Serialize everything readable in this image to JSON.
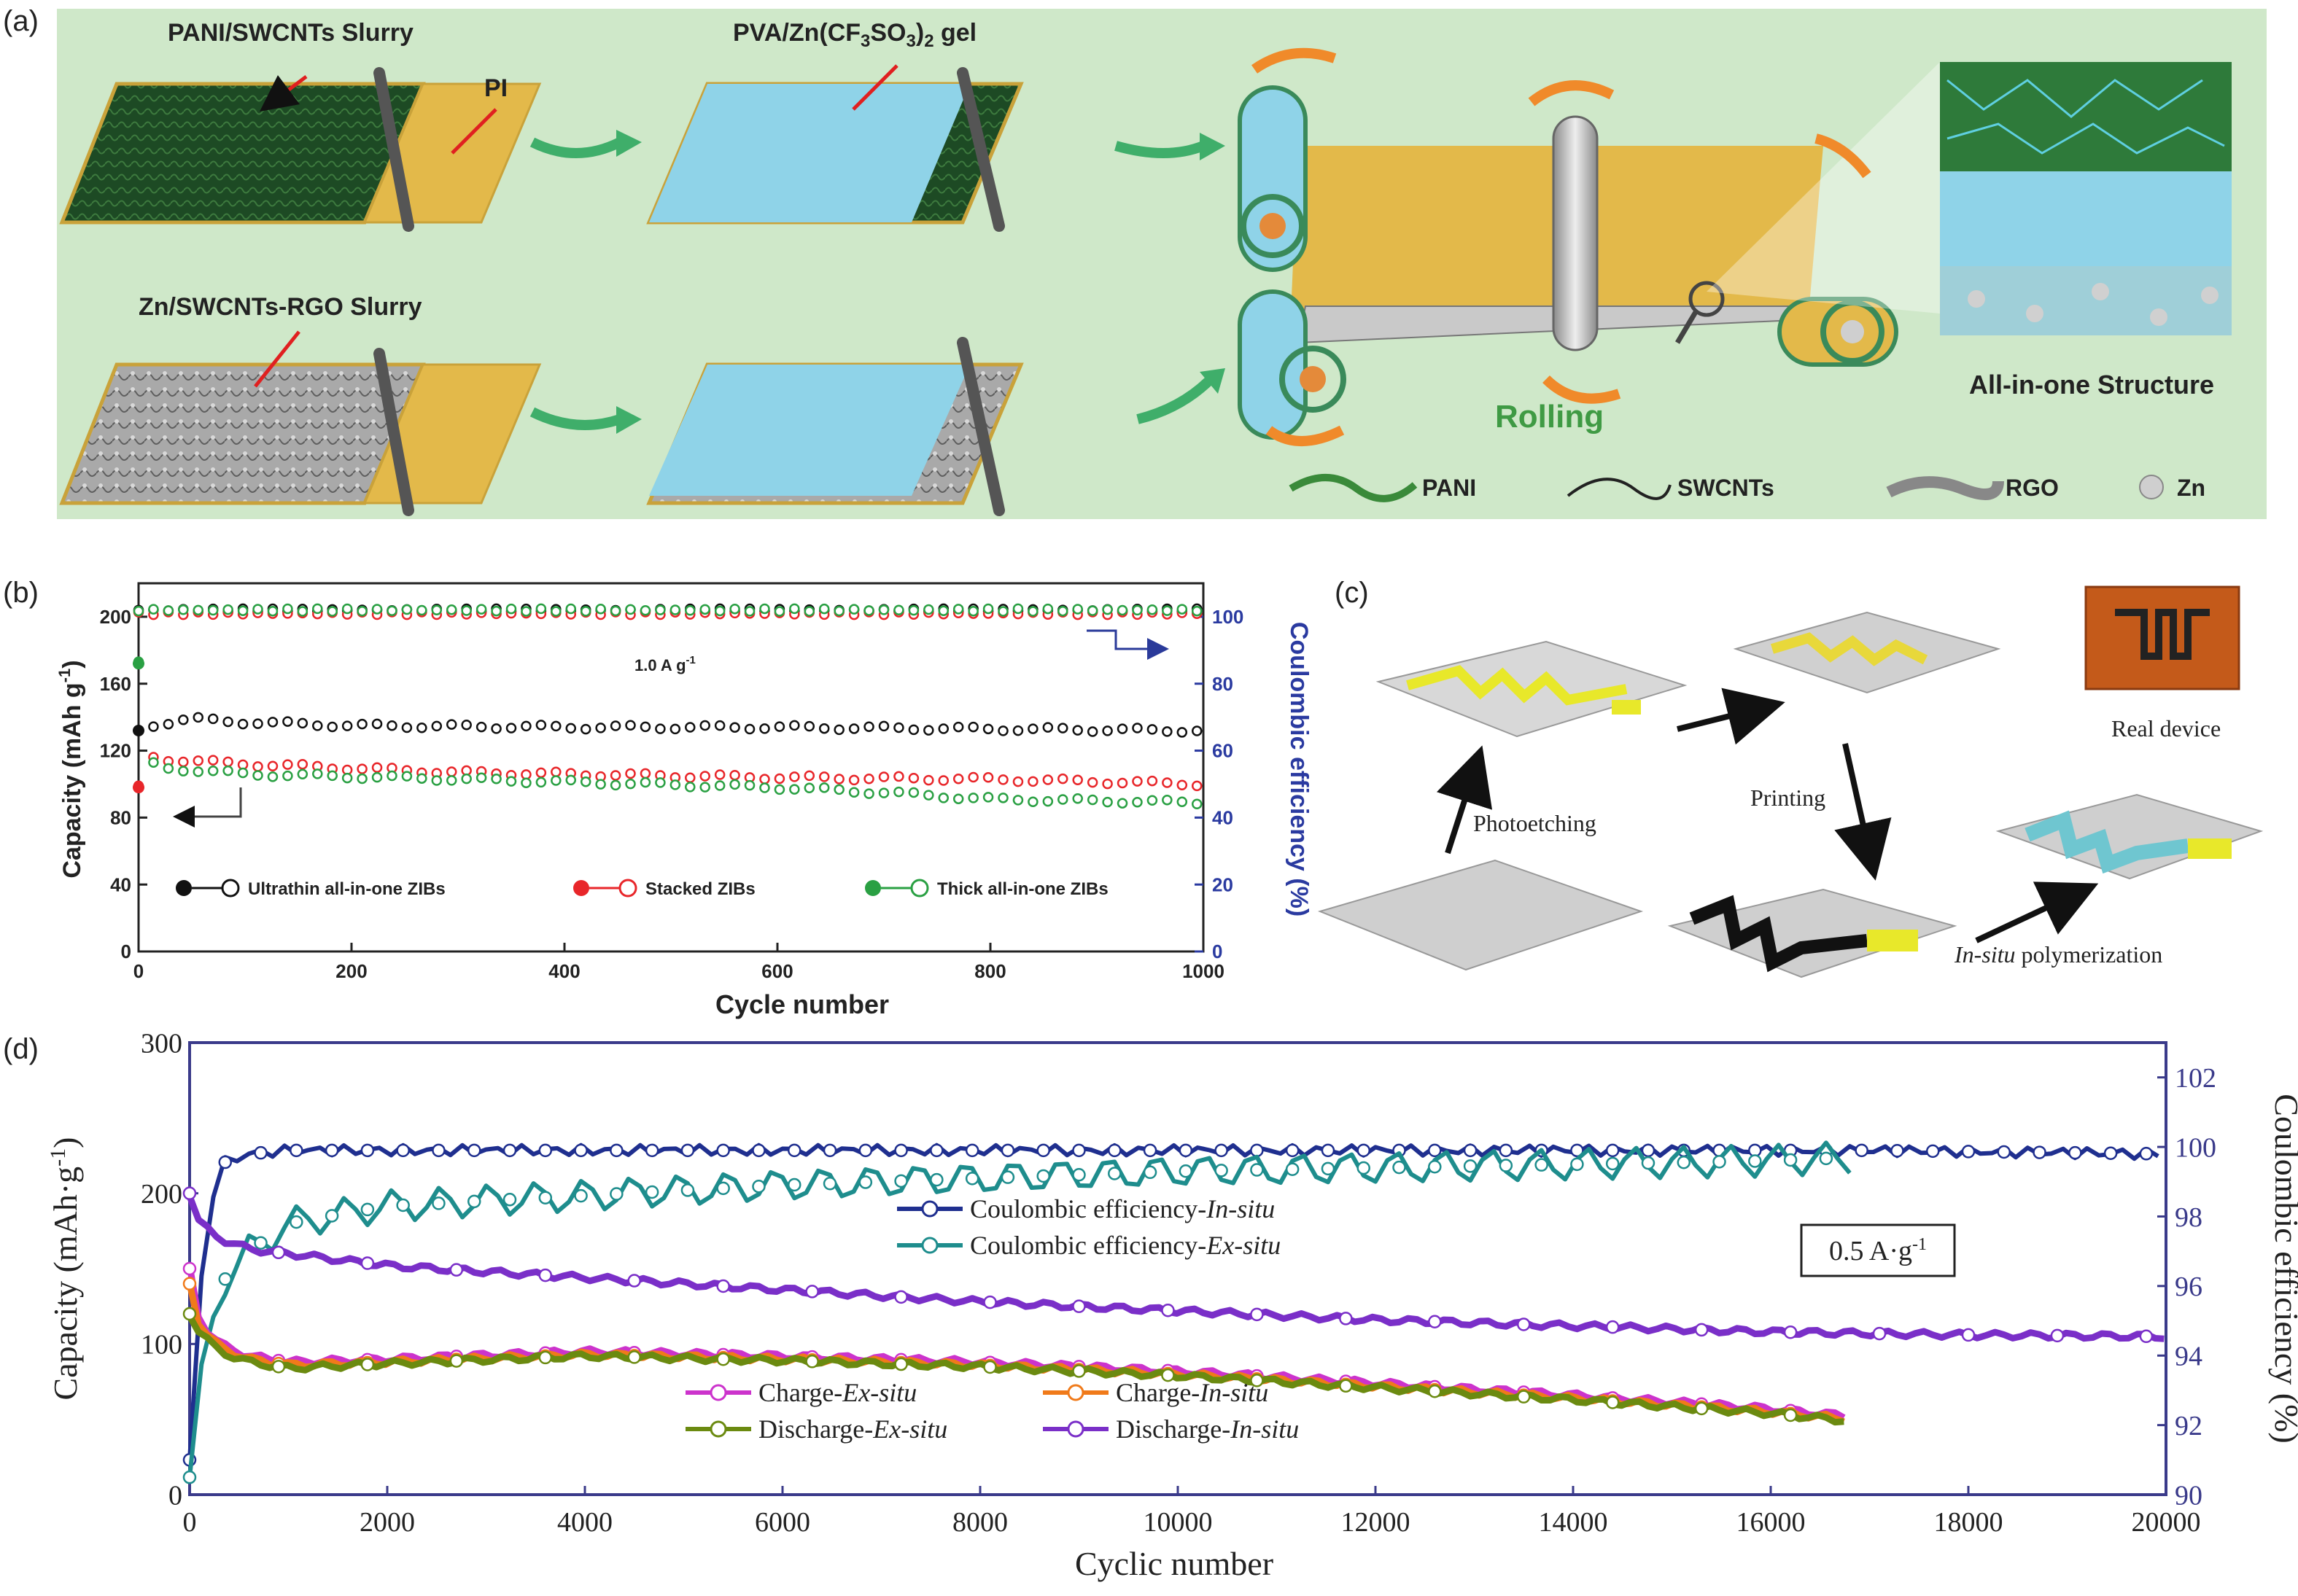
{
  "panel_a": {
    "label": "(a)",
    "pani_slurry": "PANI/SWCNTs Slurry",
    "pi": "PI",
    "pva_gel_html": "PVA/Zn(CF<tspan font-size='32' dy='8'>3</tspan><tspan dy='-8'>SO</tspan><tspan font-size='32' dy='8'>3</tspan><tspan dy='-8'>)</tspan><tspan font-size='32' dy='8'>2</tspan><tspan dy='-8'> gel</tspan>",
    "pva_gel": "PVA/Zn(CF3SO3)2 gel",
    "zn_slurry": "Zn/SWCNTs-RGO Slurry",
    "rolling": "Rolling",
    "all_in_one": "All-in-one Structure",
    "legend": [
      "PANI",
      "SWCNTs",
      "RGO",
      "Zn"
    ],
    "colors": {
      "bg": "#cfe8c9",
      "pani": "#1d4a24",
      "pi": "#e3b94a",
      "gel": "#8fd3e8",
      "arrow": "#3fae6a",
      "orange": "#f08a2a",
      "rolling": "#3f9a44"
    }
  },
  "panel_c": {
    "label": "(c)",
    "photoetching": "Photoetching",
    "printing": "Printing",
    "real_device": "Real device",
    "in_situ": "In-situ",
    "polymerization": " polymerization"
  },
  "chart_data": [
    {
      "panel": "(b)",
      "type": "scatter",
      "xlabel": "Cycle number",
      "ylabel": "Capacity (mAh g⁻¹)",
      "y2label": "Coulombic efficiency (%)",
      "xlim": [
        0,
        1000
      ],
      "ylim": [
        0,
        220
      ],
      "y2lim": [
        0,
        110
      ],
      "xticks": [
        0,
        200,
        400,
        600,
        800,
        1000
      ],
      "yticks": [
        0,
        40,
        80,
        120,
        160,
        200
      ],
      "y2ticks": [
        0,
        20,
        40,
        60,
        80,
        100
      ],
      "annotation": "1.0 A g⁻¹",
      "legend": "bottom",
      "series": [
        {
          "name": "Ultrathin all-in-one ZIBs",
          "color": "#111111",
          "capacity": {
            "x": [
              0,
              10,
              50,
              100,
              200,
              400,
              600,
              800,
              1000
            ],
            "y": [
              132,
              135,
              139,
              137,
              135,
              134,
              134,
              133,
              132
            ]
          },
          "efficiency": {
            "x": [
              0,
              1000
            ],
            "y": [
              102,
              102
            ]
          }
        },
        {
          "name": "Stacked ZIBs",
          "color": "#e8262a",
          "capacity": {
            "x": [
              0,
              5,
              20,
              100,
              300,
              600,
              800,
              1000
            ],
            "y": [
              98,
              118,
              115,
              112,
              107,
              104,
              103,
              100
            ]
          },
          "efficiency": {
            "x": [
              0,
              1000
            ],
            "y": [
              101,
              101
            ]
          }
        },
        {
          "name": "Thick all-in-one ZIBs",
          "color": "#2aa043",
          "capacity": {
            "x": [
              0,
              5,
              20,
              100,
              300,
              600,
              700,
              800,
              1000
            ],
            "y": [
              172,
              115,
              110,
              106,
              103,
              98,
              95,
              91,
              89
            ]
          },
          "efficiency": {
            "x": [
              0,
              1000
            ],
            "y": [
              102,
              102
            ]
          }
        }
      ]
    },
    {
      "panel": "(d)",
      "type": "line",
      "xlabel": "Cyclic number",
      "ylabel": "Capacity (mAh·g⁻¹)",
      "y2label": "Coulombic efficiency (%)",
      "xlim": [
        0,
        20000
      ],
      "ylim": [
        0,
        300
      ],
      "y2lim": [
        90,
        103
      ],
      "xticks": [
        0,
        2000,
        4000,
        6000,
        8000,
        10000,
        12000,
        14000,
        16000,
        18000,
        20000
      ],
      "yticks": [
        0,
        100,
        200,
        300
      ],
      "y2ticks": [
        90,
        92,
        94,
        96,
        98,
        100,
        102
      ],
      "annotation": "0.5 A·g⁻¹",
      "legend": "bottom-left",
      "series": [
        {
          "name": "Coulombic efficiency-In-situ",
          "label_prefix": "Coulombic efficiency-",
          "label_italic": "In-situ",
          "axis": "right",
          "color": "#1f2f8f",
          "x": [
            0,
            150,
            300,
            600,
            1000,
            3000,
            6000,
            10000,
            14000,
            17000,
            20000
          ],
          "y": [
            91,
            97.5,
            99.5,
            99.8,
            99.9,
            99.9,
            99.9,
            99.9,
            99.9,
            99.9,
            99.8
          ]
        },
        {
          "name": "Coulombic efficiency-Ex-situ",
          "label_prefix": "Coulombic efficiency-",
          "label_italic": "Ex-situ",
          "axis": "right",
          "color": "#1e8d8d",
          "x": [
            0,
            100,
            300,
            600,
            1000,
            2000,
            4000,
            6000,
            8000,
            10000,
            12000,
            14000,
            16000,
            16800
          ],
          "y": [
            90.5,
            93,
            96,
            97,
            97.8,
            98.3,
            98.6,
            98.9,
            99.1,
            99.3,
            99.4,
            99.5,
            99.6,
            99.7
          ]
        },
        {
          "name": "Charge-Ex-situ",
          "label_prefix": "Charge-",
          "label_italic": "Ex-situ",
          "axis": "left",
          "color": "#cc33cc",
          "x": [
            0,
            100,
            300,
            600,
            1000,
            2000,
            4000,
            6000,
            8000,
            10000,
            12000,
            14000,
            16000,
            16800
          ],
          "y": [
            150,
            115,
            100,
            92,
            88,
            90,
            95,
            92,
            88,
            82,
            74,
            66,
            57,
            52
          ]
        },
        {
          "name": "Charge-In-situ",
          "label_prefix": "Charge-",
          "label_italic": "In-situ",
          "axis": "left",
          "color": "#f07a1a",
          "x": [
            0,
            100,
            300,
            600,
            1000,
            2000,
            4000,
            6000,
            8000,
            10000,
            12000,
            14000,
            16000,
            16800
          ],
          "y": [
            140,
            112,
            98,
            90,
            86,
            88,
            93,
            90,
            86,
            80,
            72,
            64,
            55,
            50
          ]
        },
        {
          "name": "Discharge-Ex-situ",
          "label_prefix": "Discharge-",
          "label_italic": "Ex-situ",
          "axis": "left",
          "color": "#6b8a10",
          "x": [
            0,
            100,
            300,
            600,
            1000,
            2000,
            4000,
            6000,
            8000,
            10000,
            12000,
            14000,
            16000,
            16800
          ],
          "y": [
            120,
            108,
            95,
            88,
            84,
            87,
            92,
            89,
            85,
            79,
            71,
            63,
            54,
            49
          ]
        },
        {
          "name": "Discharge-In-situ",
          "label_prefix": "Discharge-",
          "label_italic": "In-situ",
          "axis": "left",
          "color": "#7a2fc8",
          "x": [
            0,
            100,
            300,
            600,
            1000,
            2000,
            4000,
            6000,
            8000,
            10000,
            12000,
            14000,
            16000,
            18000,
            20000
          ],
          "y": [
            200,
            180,
            170,
            163,
            160,
            152,
            144,
            136,
            128,
            122,
            116,
            112,
            108,
            106,
            105
          ]
        }
      ]
    }
  ]
}
